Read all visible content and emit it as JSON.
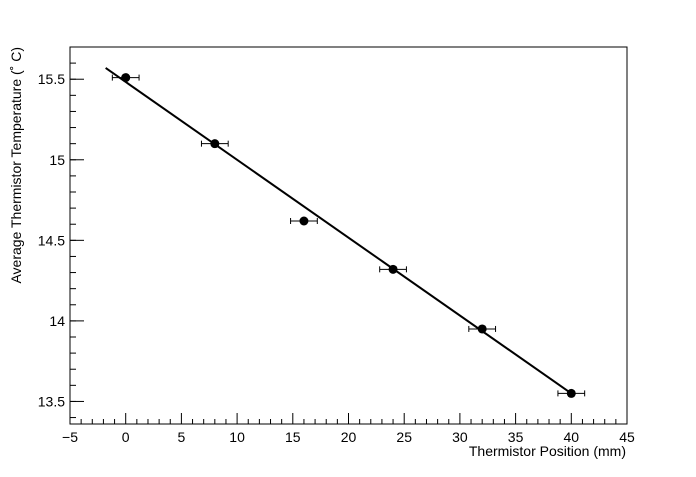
{
  "chart_data": {
    "type": "scatter",
    "title": "",
    "xlabel": "Thermistor Position (mm)",
    "ylabel": "Average Thermistor Temperature (˚ C)",
    "xlim": [
      -5,
      45
    ],
    "ylim": [
      13.36,
      15.7
    ],
    "x_ticks": [
      -5,
      0,
      5,
      10,
      15,
      20,
      25,
      30,
      35,
      40,
      45
    ],
    "x_tick_labels": [
      "−5",
      "0",
      "5",
      "10",
      "15",
      "20",
      "25",
      "30",
      "35",
      "40",
      "45"
    ],
    "y_ticks": [
      13.5,
      14,
      14.5,
      15,
      15.5
    ],
    "y_tick_labels": [
      "13.5",
      "14",
      "14.5",
      "15",
      "15.5"
    ],
    "grid": false,
    "series": [
      {
        "points": [
          {
            "x": 0,
            "y": 15.51,
            "xerr": 1.2
          },
          {
            "x": 8,
            "y": 15.1,
            "xerr": 1.2
          },
          {
            "x": 16,
            "y": 14.62,
            "xerr": 1.2
          },
          {
            "x": 24,
            "y": 14.32,
            "xerr": 1.2
          },
          {
            "x": 32,
            "y": 13.95,
            "xerr": 1.2
          },
          {
            "x": 40,
            "y": 13.55,
            "xerr": 1.2
          }
        ]
      }
    ],
    "fit_line": {
      "x_start": -1.8,
      "x_end": 40,
      "y_start": 15.57,
      "y_end": 13.55
    },
    "colors": {
      "marker": "#000000",
      "line": "#000000",
      "axes": "#000000"
    }
  }
}
